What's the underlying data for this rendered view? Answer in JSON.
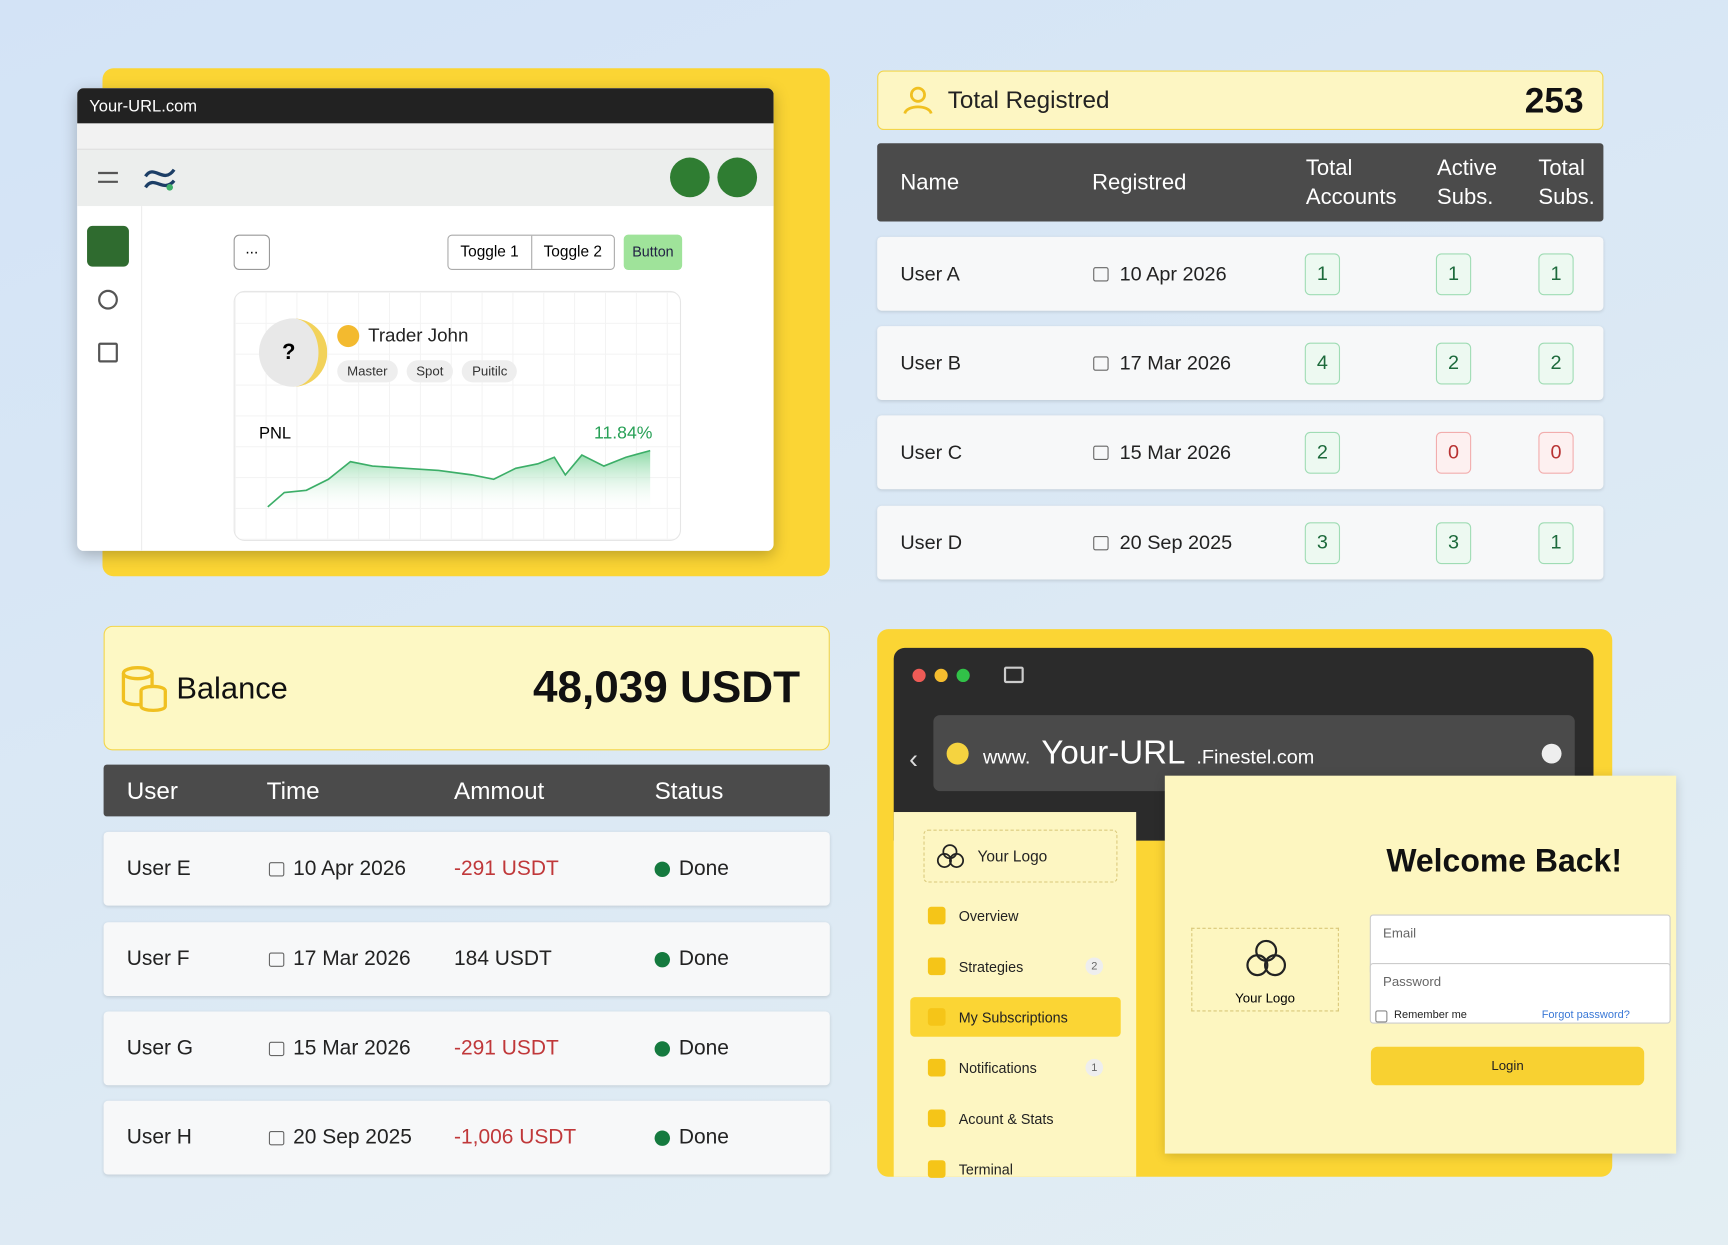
{
  "trader_window": {
    "url": "Your-URL.com",
    "toggle_1": "Toggle 1",
    "toggle_2": "Toggle 2",
    "button": "Button",
    "menu": "...",
    "trader": {
      "name": "Trader John",
      "tags": [
        "Master",
        "Spot",
        "Puitilc"
      ],
      "pnl_label": "PNL",
      "pnl_value": "11.84%"
    }
  },
  "registered": {
    "title": "Total Registred",
    "total": "253",
    "columns": [
      "Name",
      "Registred",
      "Total Accounts",
      "Active Subs.",
      "Total Subs."
    ],
    "rows": [
      [
        "User A",
        "10 Apr 2026",
        1,
        1,
        1
      ],
      [
        "User B",
        "17 Mar 2026",
        4,
        2,
        2
      ],
      [
        "User C",
        "15 Mar 2026",
        2,
        0,
        0
      ],
      [
        "User D",
        "20 Sep 2025",
        3,
        3,
        1
      ]
    ]
  },
  "balance": {
    "title": "Balance",
    "amount": "48,039 USDT",
    "columns": [
      "User",
      "Time",
      "Ammout",
      "Status"
    ],
    "rows": [
      [
        "User E",
        "10 Apr 2026",
        "-291 USDT",
        "Done"
      ],
      [
        "User F",
        "17 Mar 2026",
        "184 USDT",
        "Done"
      ],
      [
        "User G",
        "15 Mar 2026",
        "-291 USDT",
        "Done"
      ],
      [
        "User H",
        "20 Sep 2025",
        "-1,006 USDT",
        "Done"
      ]
    ]
  },
  "login_window": {
    "url_prefix": "www.",
    "url_main": "Your-URL",
    "url_suffix": ".Finestel.com",
    "sidebar_logo": "Your Logo",
    "menu": [
      {
        "label": "Overview"
      },
      {
        "label": "Strategies",
        "badge": "2"
      },
      {
        "label": "My Subscriptions"
      },
      {
        "label": "Notifications",
        "badge": "1"
      },
      {
        "label": "Acount & Stats"
      },
      {
        "label": "Terminal"
      }
    ],
    "welcome": "Welcome Back!",
    "logo": "Your Logo",
    "email": "Email",
    "password": "Password",
    "remember": "Remember me",
    "forgot": "Forgot password?",
    "login": "Login"
  }
}
